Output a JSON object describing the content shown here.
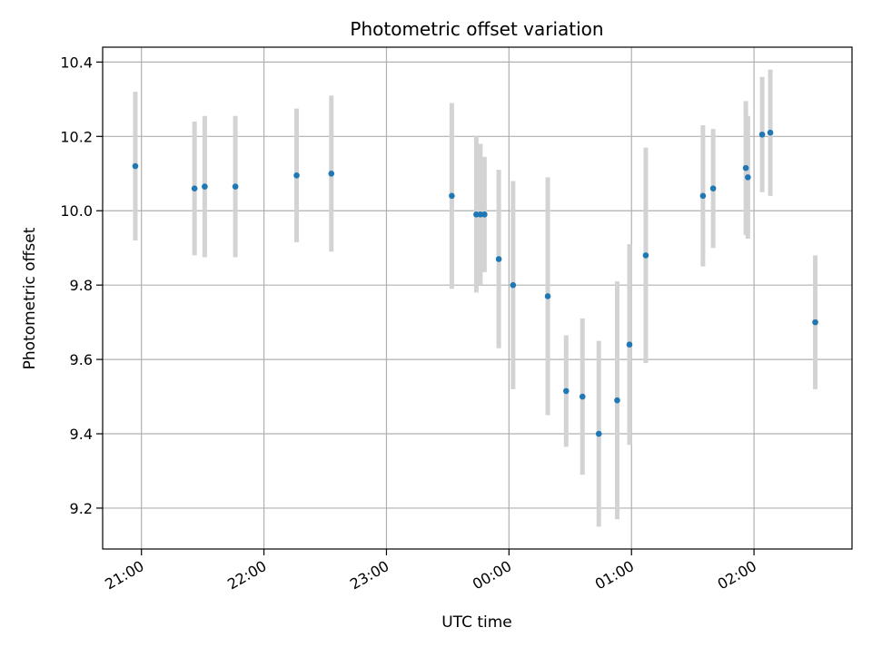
{
  "chart_data": {
    "type": "scatter",
    "title": "Photometric offset variation",
    "xlabel": "UTC time",
    "ylabel": "Photometric offset",
    "x_axis": "time",
    "xlim": [
      "20:41",
      "02:48"
    ],
    "ylim": [
      9.09,
      10.44
    ],
    "xticks": [
      "21:00",
      "22:00",
      "23:00",
      "00:00",
      "01:00",
      "02:00"
    ],
    "yticks": [
      "9.2",
      "9.4",
      "9.6",
      "9.8",
      "10.0",
      "10.2",
      "10.4"
    ],
    "grid": true,
    "colors": {
      "point": "#1f77b4",
      "errorbar": "#d3d3d3",
      "grid": "#b0b0b0"
    },
    "points": [
      {
        "t": "20:57",
        "y": 10.12,
        "err": 0.2
      },
      {
        "t": "21:26",
        "y": 10.06,
        "err": 0.18
      },
      {
        "t": "21:31",
        "y": 10.065,
        "err": 0.19
      },
      {
        "t": "21:46",
        "y": 10.065,
        "err": 0.19
      },
      {
        "t": "22:16",
        "y": 10.095,
        "err": 0.18
      },
      {
        "t": "22:33",
        "y": 10.1,
        "err": 0.21
      },
      {
        "t": "23:32",
        "y": 10.04,
        "err": 0.25
      },
      {
        "t": "23:44",
        "y": 9.99,
        "err": 0.21
      },
      {
        "t": "23:46",
        "y": 9.99,
        "err": 0.19
      },
      {
        "t": "23:48",
        "y": 9.99,
        "err": 0.155
      },
      {
        "t": "23:55",
        "y": 9.87,
        "err": 0.24
      },
      {
        "t": "00:02",
        "y": 9.8,
        "err": 0.28
      },
      {
        "t": "00:19",
        "y": 9.77,
        "err": 0.32
      },
      {
        "t": "00:28",
        "y": 9.515,
        "err": 0.15
      },
      {
        "t": "00:36",
        "y": 9.5,
        "err": 0.21
      },
      {
        "t": "00:44",
        "y": 9.4,
        "err": 0.25
      },
      {
        "t": "00:53",
        "y": 9.49,
        "err": 0.32
      },
      {
        "t": "00:59",
        "y": 9.64,
        "err": 0.27
      },
      {
        "t": "01:07",
        "y": 9.88,
        "err": 0.29
      },
      {
        "t": "01:35",
        "y": 10.04,
        "err": 0.19
      },
      {
        "t": "01:40",
        "y": 10.06,
        "err": 0.16
      },
      {
        "t": "01:56",
        "y": 10.115,
        "err": 0.18
      },
      {
        "t": "01:57",
        "y": 10.09,
        "err": 0.165
      },
      {
        "t": "02:04",
        "y": 10.205,
        "err": 0.155
      },
      {
        "t": "02:08",
        "y": 10.21,
        "err": 0.17
      },
      {
        "t": "02:30",
        "y": 9.7,
        "err": 0.18
      }
    ]
  }
}
